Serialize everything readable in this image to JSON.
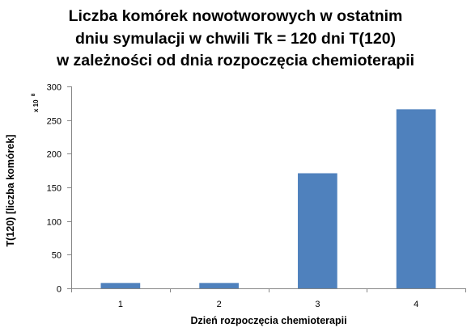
{
  "chart_data": {
    "type": "bar",
    "title_lines": [
      "Liczba komórek nowotworowych w ostatnim",
      "dniu symulacji w chwili Tk = 120 dni T(120)",
      "w zależności od dnia rozpoczęcia chemioterapii"
    ],
    "categories": [
      "1",
      "2",
      "3",
      "4"
    ],
    "values": [
      8,
      8,
      171,
      266
    ],
    "xlabel": "Dzień rozpoczęcia chemioterapii",
    "ylabel": "T(120) [liczba komórek]",
    "y_scale_label": "x 10",
    "y_scale_exponent": "8",
    "ylim": [
      0,
      300
    ],
    "yticks": [
      0,
      50,
      100,
      150,
      200,
      250,
      300
    ],
    "grid": false,
    "legend": "none",
    "colors": {
      "bar": "#4f81bd",
      "axis": "#868686",
      "background": "#ffffff"
    }
  }
}
